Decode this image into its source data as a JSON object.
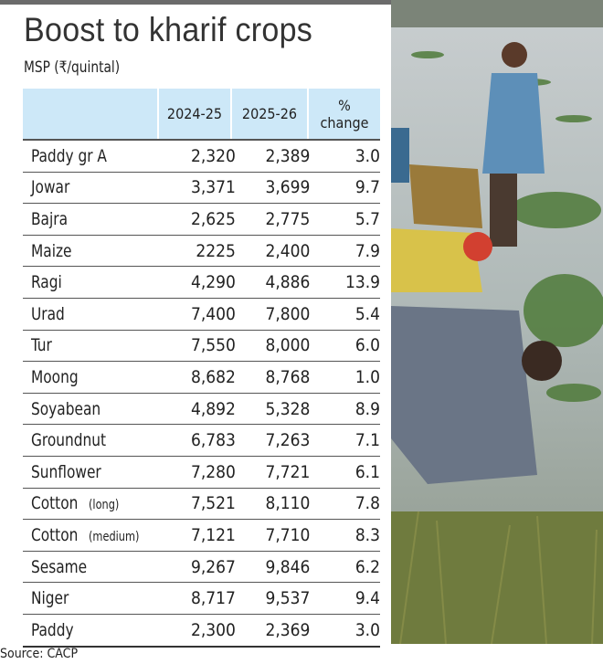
{
  "title": "Boost to kharif crops",
  "subtitle": "MSP (₹/quintal)",
  "source": "Source: CACP",
  "colors": {
    "header_bg": "#cde8f8",
    "top_bar": "#6b6b6b"
  },
  "chart_data": {
    "type": "table",
    "title": "Boost to kharif crops",
    "subtitle": "MSP (₹/quintal)",
    "columns": [
      "",
      "2024-25",
      "2025-26",
      "% change"
    ],
    "rows": [
      {
        "crop": "Paddy gr A",
        "note": "",
        "v2024": "2,320",
        "v2025": "2,389",
        "change": "3.0"
      },
      {
        "crop": "Jowar",
        "note": "",
        "v2024": "3,371",
        "v2025": "3,699",
        "change": "9.7"
      },
      {
        "crop": "Bajra",
        "note": "",
        "v2024": "2,625",
        "v2025": "2,775",
        "change": "5.7"
      },
      {
        "crop": "Maize",
        "note": "",
        "v2024": "2225",
        "v2025": "2,400",
        "change": "7.9"
      },
      {
        "crop": "Ragi",
        "note": "",
        "v2024": "4,290",
        "v2025": "4,886",
        "change": "13.9"
      },
      {
        "crop": "Urad",
        "note": "",
        "v2024": "7,400",
        "v2025": "7,800",
        "change": "5.4"
      },
      {
        "crop": "Tur",
        "note": "",
        "v2024": "7,550",
        "v2025": "8,000",
        "change": "6.0"
      },
      {
        "crop": "Moong",
        "note": "",
        "v2024": "8,682",
        "v2025": "8,768",
        "change": "1.0"
      },
      {
        "crop": "Soyabean",
        "note": "",
        "v2024": "4,892",
        "v2025": "5,328",
        "change": "8.9"
      },
      {
        "crop": "Groundnut",
        "note": "",
        "v2024": "6,783",
        "v2025": "7,263",
        "change": "7.1"
      },
      {
        "crop": "Sunflower",
        "note": "",
        "v2024": "7,280",
        "v2025": "7,721",
        "change": "6.1"
      },
      {
        "crop": "Cotton",
        "note": "(long)",
        "v2024": "7,521",
        "v2025": "8,110",
        "change": "7.8"
      },
      {
        "crop": "Cotton",
        "note": "(medium)",
        "v2024": "7,121",
        "v2025": "7,710",
        "change": "8.3"
      },
      {
        "crop": "Sesame",
        "note": "",
        "v2024": "9,267",
        "v2025": "9,846",
        "change": "6.2"
      },
      {
        "crop": "Niger",
        "note": "",
        "v2024": "8,717",
        "v2025": "9,537",
        "change": "9.4"
      },
      {
        "crop": "Paddy",
        "note": "",
        "v2024": "2,300",
        "v2025": "2,369",
        "change": "3.0"
      }
    ]
  }
}
